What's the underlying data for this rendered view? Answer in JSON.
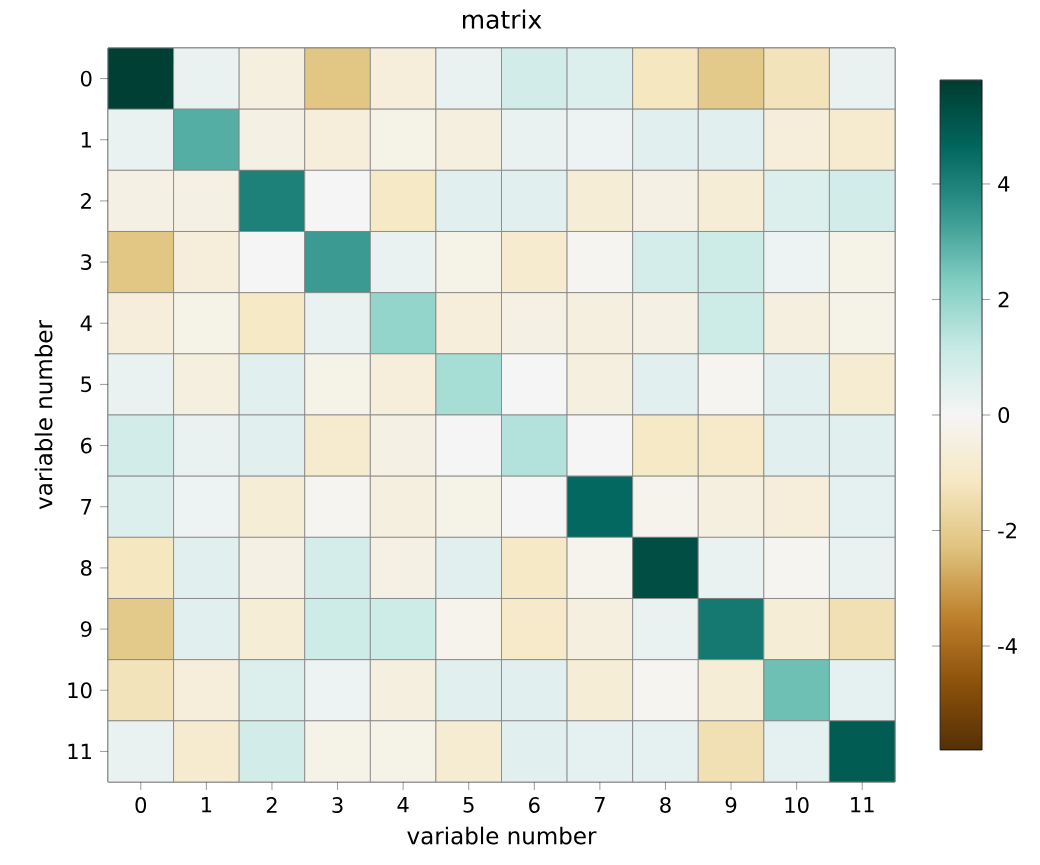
{
  "chart_data": {
    "type": "heatmap",
    "title": "matrix",
    "xlabel": "variable number",
    "ylabel": "variable number",
    "categories": [
      "0",
      "1",
      "2",
      "3",
      "4",
      "5",
      "6",
      "7",
      "8",
      "9",
      "10",
      "11"
    ],
    "y_categories": [
      "0",
      "1",
      "2",
      "3",
      "4",
      "5",
      "6",
      "7",
      "8",
      "9",
      "10",
      "11"
    ],
    "cells": [
      [
        5.7,
        0.3,
        -0.5,
        -2.2,
        -0.6,
        0.3,
        0.9,
        0.6,
        -1.2,
        -2.1,
        -1.3,
        0.3
      ],
      [
        0.3,
        3.0,
        -0.4,
        -0.6,
        -0.3,
        -0.5,
        0.3,
        0.2,
        0.5,
        0.5,
        -0.6,
        -0.9
      ],
      [
        -0.4,
        -0.4,
        4.0,
        0.0,
        -1.1,
        0.5,
        0.5,
        -0.7,
        -0.4,
        -0.7,
        0.6,
        0.9
      ],
      [
        -2.2,
        -0.6,
        0.0,
        3.4,
        0.3,
        -0.3,
        -0.9,
        -0.1,
        0.8,
        1.0,
        0.2,
        -0.3
      ],
      [
        -0.6,
        -0.3,
        -1.1,
        0.3,
        2.0,
        -0.6,
        -0.4,
        -0.5,
        -0.4,
        1.0,
        -0.5,
        -0.3
      ],
      [
        0.3,
        -0.5,
        0.5,
        -0.3,
        -0.6,
        1.7,
        0.0,
        -0.5,
        0.5,
        -0.1,
        0.5,
        -0.8
      ],
      [
        0.9,
        0.3,
        0.5,
        -0.9,
        -0.4,
        0.0,
        1.5,
        0.0,
        -1.1,
        -1.0,
        0.5,
        0.5
      ],
      [
        0.6,
        0.2,
        -0.7,
        -0.1,
        -0.5,
        -0.3,
        0.0,
        4.6,
        -0.2,
        -0.5,
        -0.6,
        0.4
      ],
      [
        -1.2,
        0.5,
        -0.4,
        0.8,
        -0.4,
        0.5,
        -1.1,
        -0.2,
        5.3,
        0.3,
        -0.1,
        0.3
      ],
      [
        -2.1,
        0.5,
        -0.7,
        1.0,
        1.0,
        -0.2,
        -1.0,
        -0.5,
        0.3,
        4.2,
        -0.7,
        -1.4
      ],
      [
        -1.3,
        -0.6,
        0.6,
        0.2,
        -0.5,
        0.5,
        0.5,
        -0.7,
        -0.1,
        -0.7,
        2.6,
        0.4
      ],
      [
        0.3,
        -0.9,
        0.9,
        -0.3,
        -0.3,
        -0.8,
        0.5,
        0.4,
        0.4,
        -1.4,
        0.4,
        4.9
      ]
    ],
    "clim": [
      -5.8,
      5.8
    ],
    "cticks": [
      -4,
      -2,
      0,
      2,
      4
    ]
  }
}
